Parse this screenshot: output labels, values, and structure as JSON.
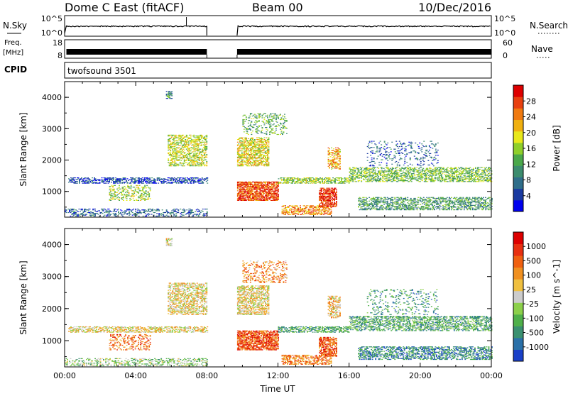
{
  "header": {
    "station": "Dome C East (fitACF)",
    "beam": "Beam 00",
    "date": "10/Dec/2016"
  },
  "strips": {
    "nsky_label": "N.Sky",
    "nsky_ticks": [
      "10^5",
      "10^0"
    ],
    "nsearch_label": "N.Search",
    "nsearch_ticks": [
      "10^5",
      "10^0"
    ],
    "freq_label_1": "Freq.",
    "freq_label_2": "[MHz]",
    "freq_ticks": [
      "18",
      "8"
    ],
    "nave_label": "Nave",
    "nave_ticks": [
      "60",
      "0"
    ],
    "cpid_label": "CPID",
    "cpid_value": "twofsound 3501"
  },
  "chart_data": [
    {
      "type": "heatmap",
      "parameter": "power",
      "ylabel": "Slant Range [km]",
      "xlabel": "",
      "ylim": [
        180,
        4500
      ],
      "y_ticks": [
        "4000",
        "3000",
        "2000",
        "1000"
      ],
      "x_range_hours": [
        0,
        24
      ],
      "data_gap_hours": [
        8,
        9.7
      ],
      "colorbar": {
        "label": "Power [dB]",
        "ticks": [
          "28",
          "24",
          "20",
          "16",
          "12",
          "8",
          "4"
        ],
        "colors": [
          "#0000ee",
          "#1a3aa0",
          "#2f6e8a",
          "#3c8c6e",
          "#4aa84a",
          "#8fcf2a",
          "#e8e81a",
          "#f0b010",
          "#f07a10",
          "#e84010",
          "#dd0000"
        ]
      },
      "echo_regions": [
        {
          "t": [
            0.2,
            8.0
          ],
          "r": [
            1250,
            1420
          ],
          "level": 0.15,
          "density": 0.55
        },
        {
          "t": [
            0.0,
            8.0
          ],
          "r": [
            200,
            450
          ],
          "level": 0.2,
          "density": 0.35
        },
        {
          "t": [
            2.5,
            4.8
          ],
          "r": [
            700,
            1200
          ],
          "level": 0.5,
          "density": 0.3
        },
        {
          "t": [
            5.8,
            8.0
          ],
          "r": [
            1800,
            2800
          ],
          "level": 0.55,
          "density": 0.5
        },
        {
          "t": [
            5.7,
            6.0
          ],
          "r": [
            3950,
            4200
          ],
          "level": 0.3,
          "density": 0.6
        },
        {
          "t": [
            9.7,
            12.0
          ],
          "r": [
            700,
            1300
          ],
          "level": 0.85,
          "density": 0.75
        },
        {
          "t": [
            9.7,
            11.5
          ],
          "r": [
            1800,
            2700
          ],
          "level": 0.6,
          "density": 0.6
        },
        {
          "t": [
            10.0,
            12.5
          ],
          "r": [
            2800,
            3500
          ],
          "level": 0.4,
          "density": 0.25
        },
        {
          "t": [
            12.0,
            16.0
          ],
          "r": [
            1250,
            1420
          ],
          "level": 0.5,
          "density": 0.6
        },
        {
          "t": [
            12.2,
            15.0
          ],
          "r": [
            250,
            550
          ],
          "level": 0.75,
          "density": 0.55
        },
        {
          "t": [
            14.3,
            15.3
          ],
          "r": [
            500,
            1100
          ],
          "level": 0.9,
          "density": 0.7
        },
        {
          "t": [
            14.8,
            15.5
          ],
          "r": [
            1700,
            2400
          ],
          "level": 0.7,
          "density": 0.5
        },
        {
          "t": [
            16.0,
            24.0
          ],
          "r": [
            1300,
            1750
          ],
          "level": 0.45,
          "density": 0.5
        },
        {
          "t": [
            16.5,
            24.0
          ],
          "r": [
            400,
            800
          ],
          "level": 0.35,
          "density": 0.5
        },
        {
          "t": [
            17.0,
            21.0
          ],
          "r": [
            1800,
            2600
          ],
          "level": 0.2,
          "density": 0.15
        }
      ]
    },
    {
      "type": "heatmap",
      "parameter": "velocity",
      "ylabel": "Slant Range [km]",
      "xlabel": "Time UT",
      "ylim": [
        180,
        4500
      ],
      "y_ticks": [
        "4000",
        "3000",
        "2000",
        "1000"
      ],
      "x_ticks": [
        "00:00",
        "04:00",
        "08:00",
        "12:00",
        "16:00",
        "20:00",
        "00:00"
      ],
      "x_range_hours": [
        0,
        24
      ],
      "data_gap_hours": [
        8,
        9.7
      ],
      "colorbar": {
        "label": "Velocity [m s^-1]",
        "ticks": [
          "1000",
          "500",
          "100",
          "25",
          "-25",
          "-100",
          "-500",
          "-1000"
        ],
        "colors": [
          "#1a40c8",
          "#2a70a8",
          "#3a9070",
          "#4fb04a",
          "#8cd04a",
          "#cccccc",
          "#f0c040",
          "#f09020",
          "#f06010",
          "#e83010",
          "#dd0000"
        ]
      },
      "echo_regions": [
        {
          "t": [
            0.2,
            8.0
          ],
          "r": [
            1250,
            1420
          ],
          "level": 0.55,
          "density": 0.55
        },
        {
          "t": [
            0.0,
            8.0
          ],
          "r": [
            200,
            450
          ],
          "level": 0.4,
          "density": 0.35
        },
        {
          "t": [
            2.5,
            4.8
          ],
          "r": [
            700,
            1200
          ],
          "level": 0.75,
          "density": 0.3
        },
        {
          "t": [
            5.8,
            8.0
          ],
          "r": [
            1800,
            2800
          ],
          "level": 0.55,
          "density": 0.5
        },
        {
          "t": [
            5.7,
            6.0
          ],
          "r": [
            3950,
            4200
          ],
          "level": 0.55,
          "density": 0.6
        },
        {
          "t": [
            9.7,
            12.0
          ],
          "r": [
            700,
            1300
          ],
          "level": 0.8,
          "density": 0.75
        },
        {
          "t": [
            9.7,
            11.5
          ],
          "r": [
            1800,
            2700
          ],
          "level": 0.55,
          "density": 0.6
        },
        {
          "t": [
            10.0,
            12.5
          ],
          "r": [
            2800,
            3500
          ],
          "level": 0.7,
          "density": 0.25
        },
        {
          "t": [
            12.0,
            16.0
          ],
          "r": [
            1250,
            1420
          ],
          "level": 0.3,
          "density": 0.6
        },
        {
          "t": [
            12.2,
            15.0
          ],
          "r": [
            250,
            550
          ],
          "level": 0.72,
          "density": 0.55
        },
        {
          "t": [
            14.3,
            15.3
          ],
          "r": [
            500,
            1100
          ],
          "level": 0.78,
          "density": 0.7
        },
        {
          "t": [
            14.8,
            15.5
          ],
          "r": [
            1700,
            2400
          ],
          "level": 0.6,
          "density": 0.5
        },
        {
          "t": [
            16.0,
            24.0
          ],
          "r": [
            1300,
            1750
          ],
          "level": 0.3,
          "density": 0.5
        },
        {
          "t": [
            16.5,
            24.0
          ],
          "r": [
            400,
            800
          ],
          "level": 0.2,
          "density": 0.5
        },
        {
          "t": [
            17.0,
            21.0
          ],
          "r": [
            1800,
            2600
          ],
          "level": 0.25,
          "density": 0.15
        }
      ]
    }
  ]
}
